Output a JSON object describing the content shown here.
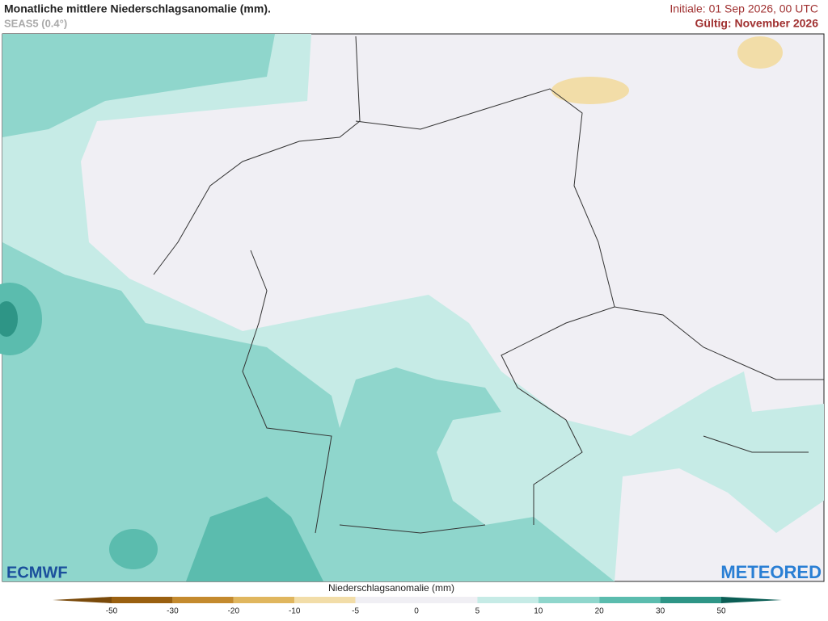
{
  "header": {
    "title": "Monatliche mittlere Niederschlagsanomalie (mm).",
    "subtitle": "SEAS5 (0.4°)",
    "initiale": "Initiale: 01 Sep 2026, 00 UTC",
    "valid": "Gültig: November 2026"
  },
  "logos": {
    "left": "ECMWF",
    "right": "METEORED"
  },
  "legend": {
    "title": "Niederschlagsanomalie (mm)",
    "ticks": [
      -50,
      -30,
      -20,
      -10,
      -5,
      0,
      5,
      10,
      20,
      30,
      50
    ],
    "colors": [
      "#7a4a0a",
      "#9a6010",
      "#c48a2e",
      "#e0b65e",
      "#f2dda8",
      "#f0eff4",
      "#f0eff4",
      "#c6ebe6",
      "#8fd6cc",
      "#5bbcae",
      "#2e9586",
      "#0b5e55"
    ]
  }
}
